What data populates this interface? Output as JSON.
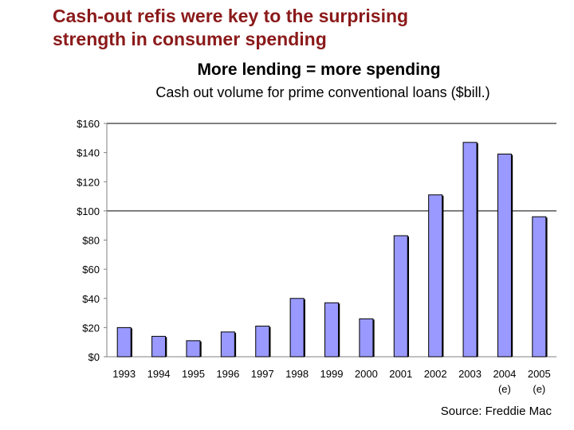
{
  "slide": {
    "title_line1": "Cash-out refis were key to the surprising",
    "title_line2": "strength in consumer spending"
  },
  "colors": {
    "title": "#8b1a1a",
    "bar": "#9999ff",
    "bar_stroke": "#000000"
  },
  "chart_data": {
    "type": "bar",
    "title": "More lending = more spending",
    "subtitle": "Cash out volume for prime conventional loans ($bill.)",
    "categories": [
      "1993",
      "1994",
      "1995",
      "1996",
      "1997",
      "1998",
      "1999",
      "2000",
      "2001",
      "2002",
      "2003",
      "2004",
      "2005"
    ],
    "category_notes": [
      "",
      "",
      "",
      "",
      "",
      "",
      "",
      "",
      "",
      "",
      "",
      "(e)",
      "(e)"
    ],
    "values": [
      20,
      14,
      11,
      17,
      21,
      40,
      37,
      26,
      83,
      111,
      147,
      139,
      96
    ],
    "ylim": [
      0,
      160
    ],
    "yticks": [
      0,
      20,
      40,
      60,
      80,
      100,
      120,
      140,
      160
    ],
    "ytick_labels": [
      "$0",
      "$20",
      "$40",
      "$60",
      "$80",
      "$100",
      "$120",
      "$140",
      "$160"
    ],
    "gridlines": [
      100,
      160
    ],
    "xlabel": "",
    "ylabel": "",
    "source": "Source: Freddie Mac"
  }
}
